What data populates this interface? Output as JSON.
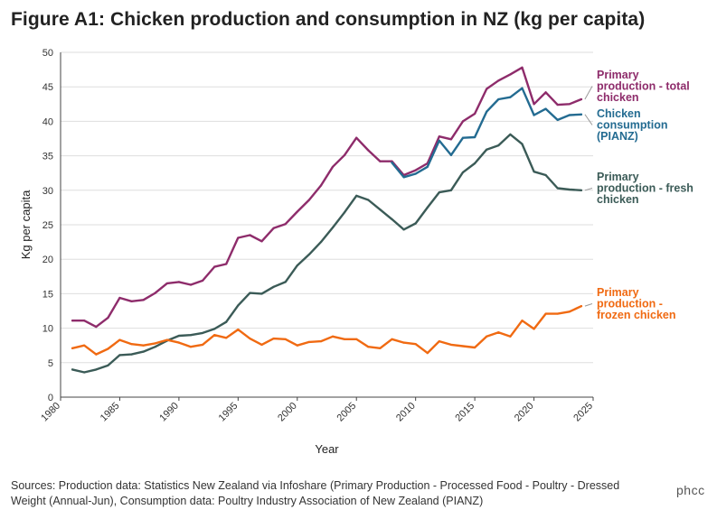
{
  "header": {
    "title": "Figure A1: Chicken production and consumption in NZ (kg per capita)"
  },
  "footer": {
    "source": "Sources: Production data: Statistics New Zealand via Infoshare (Primary Production - Processed Food - Poultry - Dressed Weight (Annual-Jun), Consumption data: Poultry Industry Association of New Zealand (PIANZ)"
  },
  "logo": {
    "text": "phcc"
  },
  "chart_data": {
    "type": "line",
    "title": "Figure A1: Chicken production and consumption in NZ (kg per capita)",
    "xlabel": "Year",
    "ylabel": "Kg per capita",
    "xlim": [
      1980,
      2025
    ],
    "ylim": [
      0,
      50
    ],
    "xticks": [
      1980,
      1985,
      1990,
      1995,
      2000,
      2005,
      2010,
      2015,
      2020,
      2025
    ],
    "yticks": [
      0,
      5,
      10,
      15,
      20,
      25,
      30,
      35,
      40,
      45,
      50
    ],
    "grid": "horizontal",
    "series": [
      {
        "name": "Primary production - total chicken",
        "label_lines": [
          "Primary",
          "production - total",
          "chicken"
        ],
        "color": "#8e2c6b",
        "x": [
          1981,
          1982,
          1983,
          1984,
          1985,
          1986,
          1987,
          1988,
          1989,
          1990,
          1991,
          1992,
          1993,
          1994,
          1995,
          1996,
          1997,
          1998,
          1999,
          2000,
          2001,
          2002,
          2003,
          2004,
          2005,
          2006,
          2007,
          2008,
          2009,
          2010,
          2011,
          2012,
          2013,
          2014,
          2015,
          2016,
          2017,
          2018,
          2019,
          2020,
          2021,
          2022,
          2023,
          2024
        ],
        "values": [
          11.1,
          11.1,
          10.2,
          11.5,
          14.4,
          13.9,
          14.1,
          15.1,
          16.5,
          16.7,
          16.3,
          16.9,
          18.9,
          19.3,
          23.1,
          23.5,
          22.6,
          24.5,
          25.1,
          26.9,
          28.6,
          30.7,
          33.4,
          35.1,
          37.6,
          35.8,
          34.2,
          34.2,
          32.2,
          32.9,
          33.9,
          37.8,
          37.4,
          40.0,
          41.1,
          44.7,
          45.9,
          46.8,
          47.8,
          42.5,
          44.2,
          42.4,
          42.5,
          43.2
        ]
      },
      {
        "name": "Chicken consumption (PIANZ)",
        "label_lines": [
          "Chicken",
          "consumption",
          "(PIANZ)"
        ],
        "color": "#236b91",
        "x": [
          2008,
          2009,
          2010,
          2011,
          2012,
          2013,
          2014,
          2015,
          2016,
          2017,
          2018,
          2019,
          2020,
          2021,
          2022,
          2023,
          2024
        ],
        "values": [
          34.0,
          31.9,
          32.4,
          33.4,
          37.2,
          35.1,
          37.6,
          37.7,
          41.4,
          43.2,
          43.5,
          44.8,
          40.9,
          41.8,
          40.2,
          40.9,
          41.0
        ]
      },
      {
        "name": "Primary production - fresh chicken",
        "label_lines": [
          "Primary",
          "production - fresh",
          "chicken"
        ],
        "color": "#3b5b57",
        "x": [
          1981,
          1982,
          1983,
          1984,
          1985,
          1986,
          1987,
          1988,
          1989,
          1990,
          1991,
          1992,
          1993,
          1994,
          1995,
          1996,
          1997,
          1998,
          1999,
          2000,
          2001,
          2002,
          2003,
          2004,
          2005,
          2006,
          2007,
          2008,
          2009,
          2010,
          2011,
          2012,
          2013,
          2014,
          2015,
          2016,
          2017,
          2018,
          2019,
          2020,
          2021,
          2022,
          2023,
          2024
        ],
        "values": [
          4.0,
          3.6,
          4.0,
          4.6,
          6.1,
          6.2,
          6.6,
          7.3,
          8.2,
          8.9,
          9.0,
          9.3,
          9.9,
          10.9,
          13.3,
          15.1,
          15.0,
          16.0,
          16.7,
          19.1,
          20.7,
          22.5,
          24.6,
          26.8,
          29.2,
          28.6,
          27.2,
          25.8,
          24.3,
          25.2,
          27.5,
          29.7,
          30.0,
          32.6,
          33.9,
          35.9,
          36.5,
          38.1,
          36.7,
          32.7,
          32.2,
          30.3,
          30.1,
          30.0
        ]
      },
      {
        "name": "Primary production - frozen chicken",
        "label_lines": [
          "Primary",
          "production -",
          "frozen chicken"
        ],
        "color": "#f06a12",
        "x": [
          1981,
          1982,
          1983,
          1984,
          1985,
          1986,
          1987,
          1988,
          1989,
          1990,
          1991,
          1992,
          1993,
          1994,
          1995,
          1996,
          1997,
          1998,
          1999,
          2000,
          2001,
          2002,
          2003,
          2004,
          2005,
          2006,
          2007,
          2008,
          2009,
          2010,
          2011,
          2012,
          2013,
          2014,
          2015,
          2016,
          2017,
          2018,
          2019,
          2020,
          2021,
          2022,
          2023,
          2024
        ],
        "values": [
          7.1,
          7.5,
          6.2,
          7.0,
          8.3,
          7.7,
          7.5,
          7.8,
          8.3,
          7.9,
          7.3,
          7.6,
          9.0,
          8.6,
          9.8,
          8.5,
          7.6,
          8.5,
          8.4,
          7.5,
          8.0,
          8.1,
          8.8,
          8.4,
          8.4,
          7.3,
          7.1,
          8.4,
          7.9,
          7.7,
          6.4,
          8.1,
          7.6,
          7.4,
          7.2,
          8.8,
          9.4,
          8.8,
          11.1,
          9.9,
          12.1,
          12.1,
          12.4,
          13.2
        ]
      }
    ]
  }
}
